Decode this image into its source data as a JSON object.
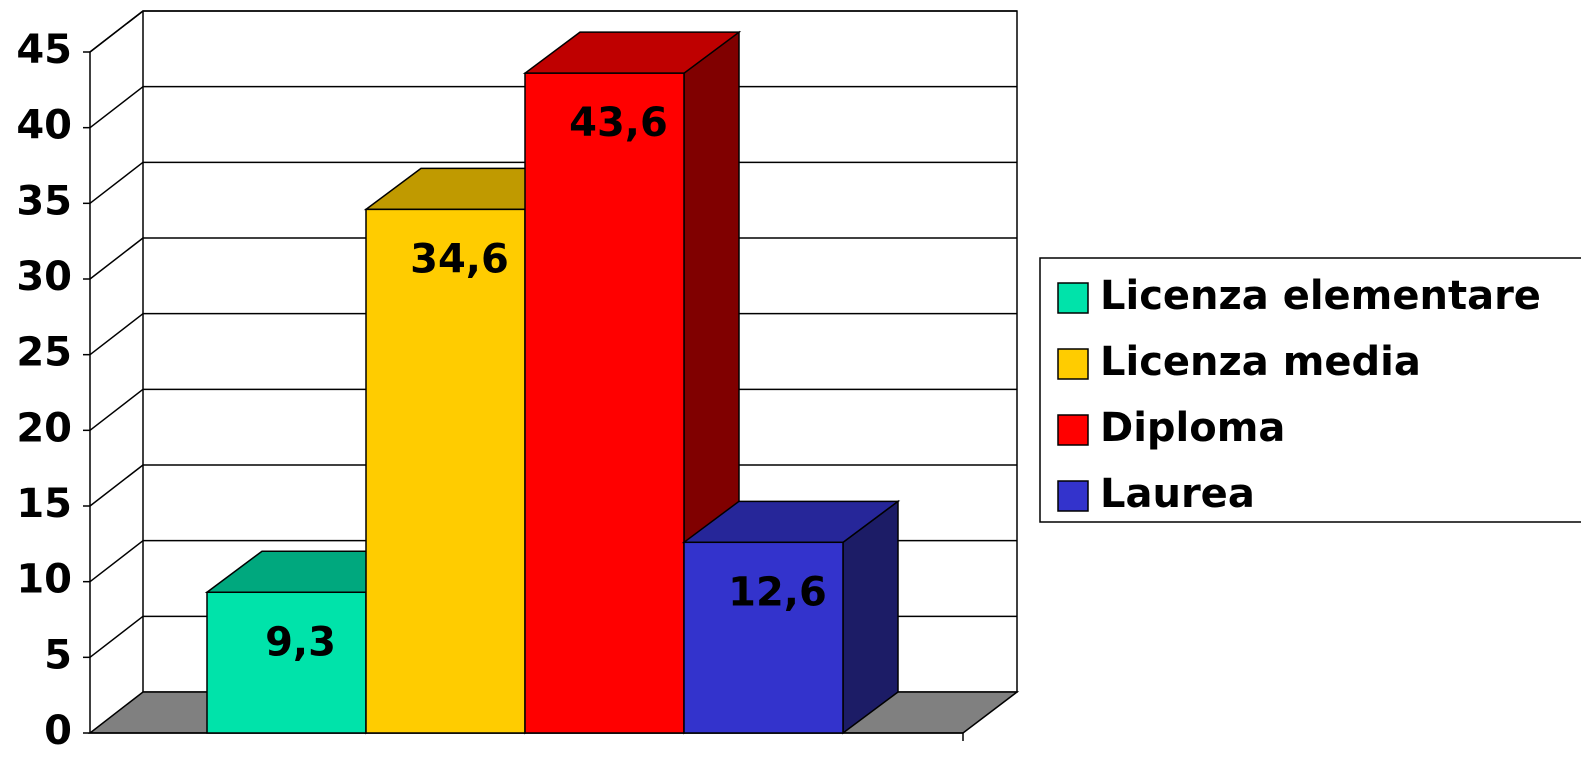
{
  "chart_data": {
    "type": "bar3d",
    "series": [
      {
        "name": "Licenza elementare",
        "color": "#00e3aa",
        "top_color": "#00a87e",
        "side_color": "#007556",
        "values": [
          9.3
        ],
        "value_labels": [
          "9,3"
        ]
      },
      {
        "name": "Licenza media",
        "color": "#ffcc00",
        "top_color": "#c09a00",
        "side_color": "#806600",
        "values": [
          34.6
        ],
        "value_labels": [
          "34,6"
        ]
      },
      {
        "name": "Diploma",
        "color": "#ff0000",
        "top_color": "#bf0000",
        "side_color": "#800000",
        "values": [
          43.6
        ],
        "value_labels": [
          "43,6"
        ]
      },
      {
        "name": "Laurea",
        "color": "#3333cc",
        "top_color": "#262699",
        "side_color": "#1c1c66",
        "values": [
          12.6
        ],
        "value_labels": [
          "12,6"
        ]
      }
    ],
    "ylim": [
      0,
      45
    ],
    "yticks": [
      0,
      5,
      10,
      15,
      20,
      25,
      30,
      35,
      40,
      45
    ],
    "grid": true,
    "legend": "right"
  }
}
